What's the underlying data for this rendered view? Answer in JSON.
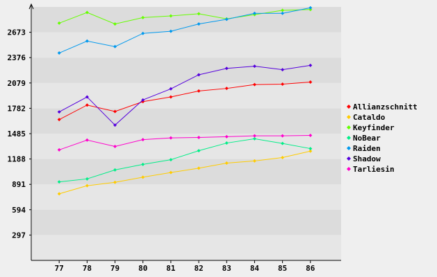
{
  "chart_data": {
    "type": "line",
    "x": [
      77,
      78,
      79,
      80,
      81,
      82,
      83,
      84,
      85,
      86
    ],
    "y_ticks": [
      297,
      594,
      891,
      1188,
      1485,
      1782,
      2079,
      2376,
      2673
    ],
    "ylim": [
      0,
      2970
    ],
    "xlim": [
      76,
      87.1
    ],
    "grid": "horizontal bands",
    "legend_position": "right",
    "series": [
      {
        "name": "Allianzschnitt",
        "color": "#ff0000",
        "values": [
          1650,
          1820,
          1745,
          1860,
          1915,
          1985,
          2015,
          2060,
          2065,
          2090
        ]
      },
      {
        "name": "Cataldo",
        "color": "#ffcc00",
        "values": [
          780,
          875,
          915,
          975,
          1030,
          1080,
          1140,
          1165,
          1205,
          1280
        ]
      },
      {
        "name": "Keyfinder",
        "color": "#66ff00",
        "values": [
          2780,
          2905,
          2770,
          2845,
          2865,
          2890,
          2830,
          2880,
          2930,
          2940
        ]
      },
      {
        "name": "NoBear",
        "color": "#00ee88",
        "values": [
          920,
          955,
          1060,
          1125,
          1180,
          1285,
          1375,
          1425,
          1370,
          1310
        ]
      },
      {
        "name": "Raiden",
        "color": "#0099ee",
        "values": [
          2430,
          2570,
          2505,
          2660,
          2685,
          2770,
          2825,
          2895,
          2895,
          2960
        ]
      },
      {
        "name": "Shadow",
        "color": "#5500dd",
        "values": [
          1740,
          1915,
          1585,
          1880,
          2010,
          2175,
          2250,
          2275,
          2235,
          2285
        ]
      },
      {
        "name": "Tarliesin",
        "color": "#ff00cc",
        "values": [
          1295,
          1410,
          1335,
          1415,
          1435,
          1440,
          1450,
          1460,
          1460,
          1465
        ]
      }
    ]
  }
}
